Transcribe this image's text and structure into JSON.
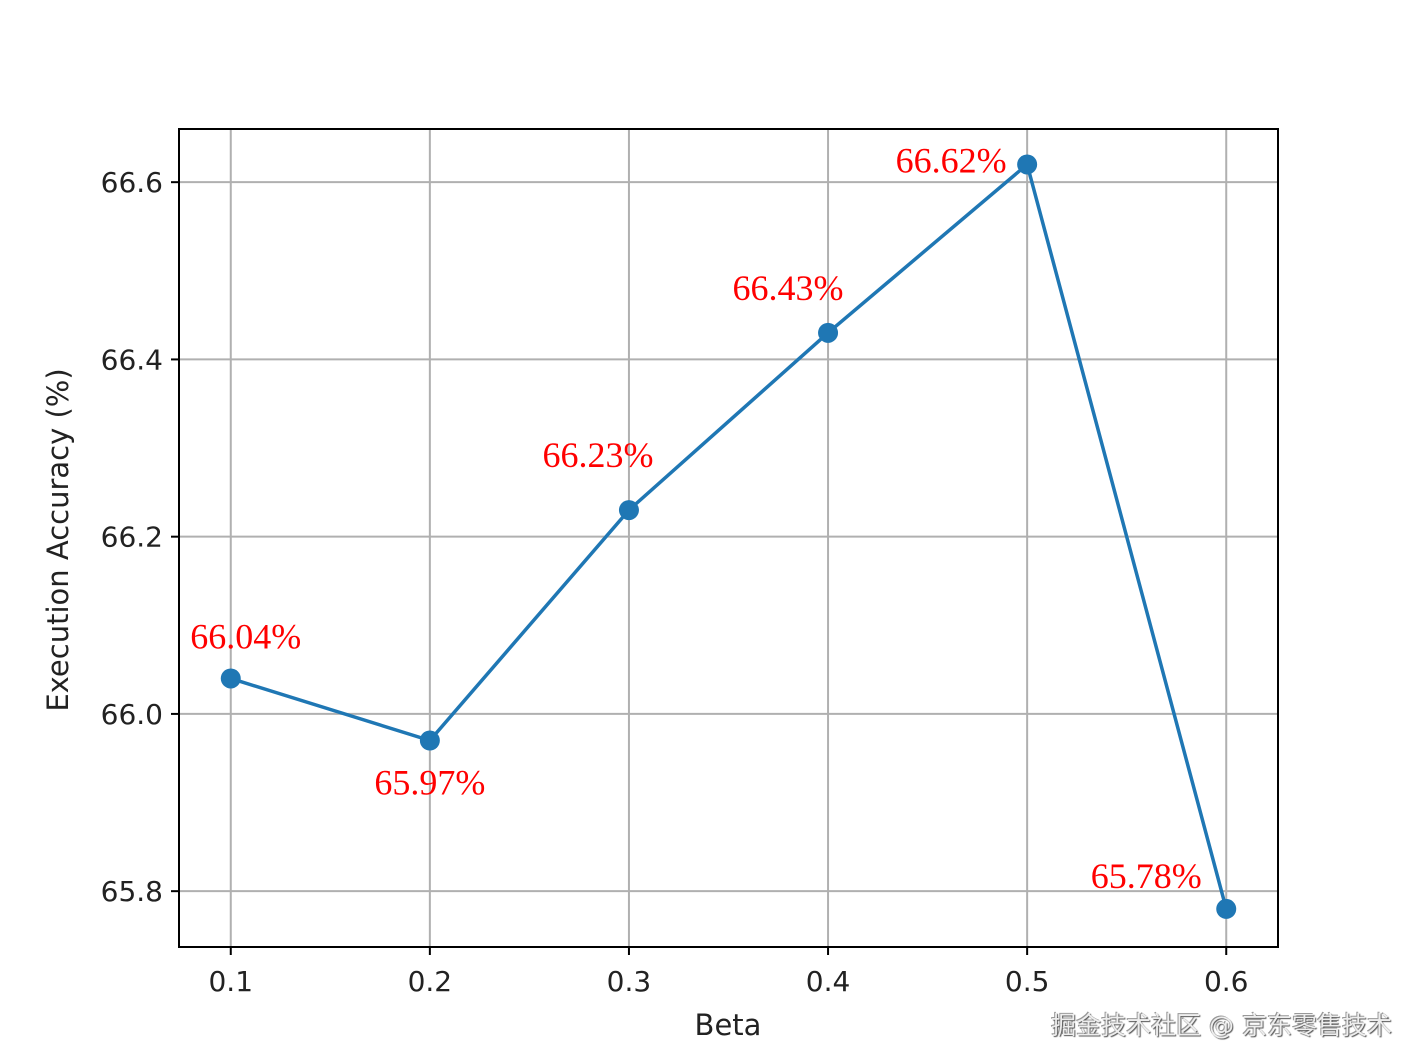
{
  "chart_data": {
    "type": "line",
    "title": "",
    "xlabel": "Beta",
    "ylabel": "Execution Accuracy (%)",
    "x": [
      0.1,
      0.2,
      0.3,
      0.4,
      0.5,
      0.6
    ],
    "series": [
      {
        "values": [
          66.04,
          65.97,
          66.23,
          66.43,
          66.62,
          65.78
        ],
        "color": "#1f77b4"
      }
    ],
    "data_labels": [
      "66.04%",
      "65.97%",
      "66.23%",
      "66.43%",
      "66.62%",
      "65.78%"
    ],
    "data_label_color": "#ff0000",
    "xticks": [
      "0.1",
      "0.2",
      "0.3",
      "0.4",
      "0.5",
      "0.6"
    ],
    "yticks": [
      "65.8",
      "66.0",
      "66.2",
      "66.4",
      "66.6"
    ],
    "xlim": [
      0.074,
      0.626
    ],
    "ylim": [
      65.737,
      66.66
    ],
    "grid": true,
    "marker": "circle"
  },
  "watermark": "掘金技术社区 @ 京东零售技术"
}
